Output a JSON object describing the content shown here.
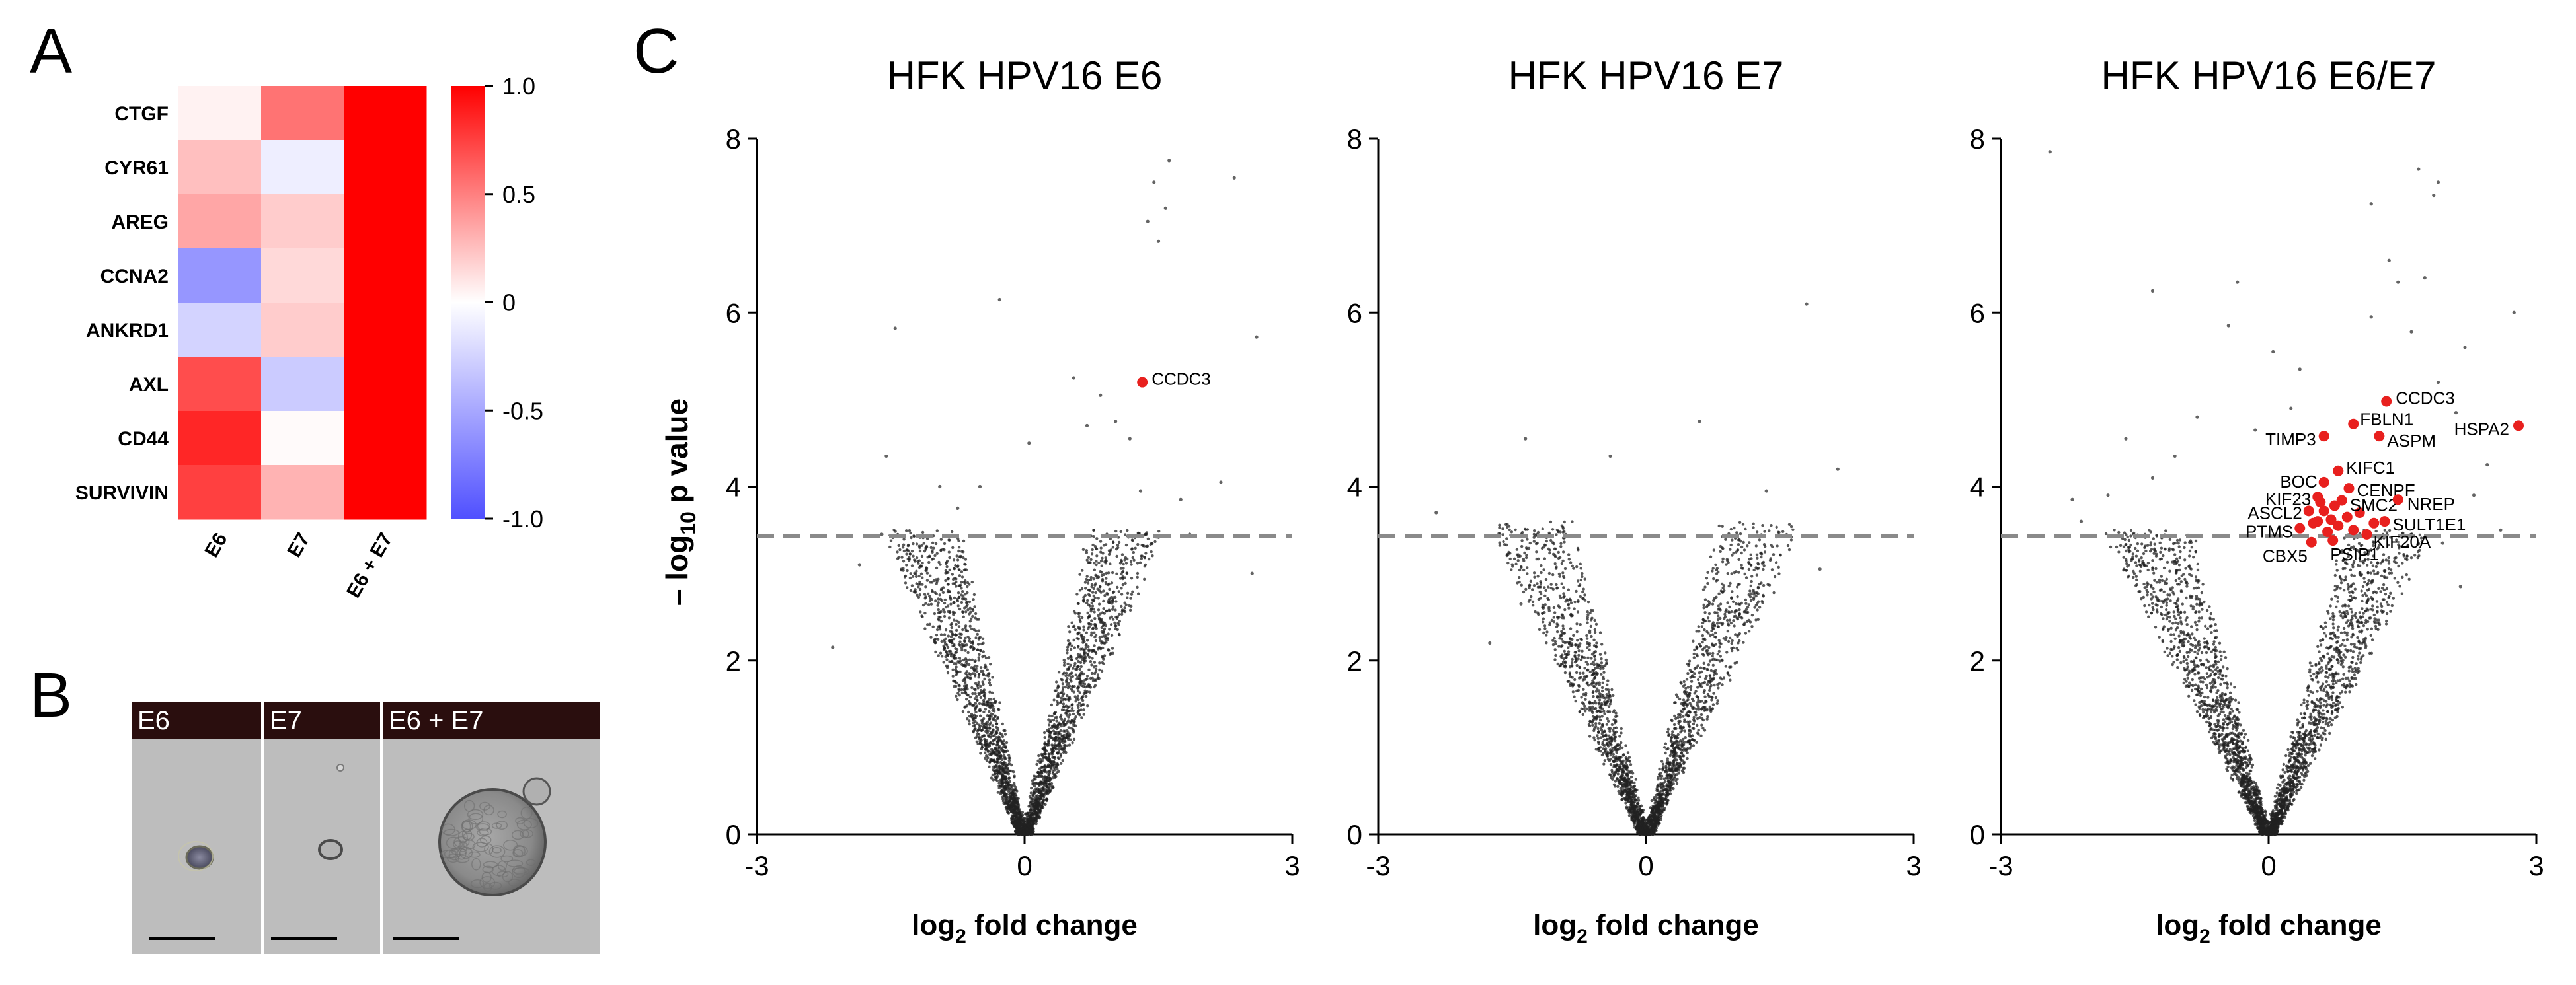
{
  "panels": {
    "A": "A",
    "B": "B",
    "C": "C"
  },
  "chart_data": [
    {
      "type": "heatmap",
      "rows": [
        "CTGF",
        "CYR61",
        "AREG",
        "CCNA2",
        "ANKRD1",
        "AXL",
        "CD44",
        "SURVIVIN"
      ],
      "columns": [
        "E6",
        "E7",
        "E6 + E7"
      ],
      "values": [
        [
          0.05,
          0.55,
          1.0
        ],
        [
          0.25,
          -0.1,
          1.0
        ],
        [
          0.35,
          0.2,
          1.0
        ],
        [
          -0.6,
          0.15,
          1.0
        ],
        [
          -0.25,
          0.2,
          1.0
        ],
        [
          0.7,
          -0.3,
          1.0
        ],
        [
          0.85,
          0.02,
          1.0
        ],
        [
          0.75,
          0.3,
          1.0
        ]
      ],
      "colorbar": {
        "range": [
          -1.0,
          1.0
        ],
        "ticks": [
          "1.0",
          "0.5",
          "0",
          "-0.5",
          "-1.0"
        ],
        "colors": {
          "low": "#5050ff",
          "mid": "#ffffff",
          "high": "#ff0000"
        }
      }
    },
    {
      "type": "scatter",
      "title": "HFK HPV16 E6",
      "xlabel_main": "log",
      "xlabel_sub": "2",
      "xlabel_rest": " fold change",
      "ylabel_main": "– log",
      "ylabel_sub": "10",
      "ylabel_rest": " p value",
      "xlim": [
        -3,
        3
      ],
      "ylim": [
        0,
        8
      ],
      "xticks": [
        "-3",
        "0",
        "3"
      ],
      "yticks": [
        "0",
        "2",
        "4",
        "6",
        "8"
      ],
      "threshold": 3.43,
      "labeled_points": [
        {
          "label": "CCDC3",
          "x": 1.32,
          "y": 5.2
        }
      ],
      "outliers": [
        [
          1.62,
          7.75
        ],
        [
          1.45,
          7.5
        ],
        [
          2.35,
          7.55
        ],
        [
          1.58,
          7.2
        ],
        [
          1.38,
          7.05
        ],
        [
          1.5,
          6.82
        ],
        [
          2.6,
          5.72
        ],
        [
          -1.45,
          5.82
        ],
        [
          -0.28,
          6.15
        ],
        [
          0.05,
          4.5
        ],
        [
          0.55,
          5.25
        ],
        [
          0.85,
          5.05
        ],
        [
          1.02,
          4.75
        ],
        [
          1.18,
          4.55
        ],
        [
          0.7,
          4.7
        ],
        [
          -1.55,
          4.35
        ],
        [
          -2.15,
          2.15
        ],
        [
          -1.6,
          3.45
        ],
        [
          -0.95,
          4.0
        ],
        [
          -0.75,
          3.75
        ],
        [
          -1.85,
          3.1
        ],
        [
          2.2,
          4.05
        ],
        [
          1.85,
          3.45
        ],
        [
          2.55,
          3.0
        ],
        [
          1.75,
          3.85
        ],
        [
          1.3,
          3.95
        ],
        [
          -0.5,
          4.0
        ]
      ],
      "colors": {
        "point": "#222222",
        "highlight": "#e8201e",
        "threshold": "#8a8a8a"
      }
    },
    {
      "type": "scatter",
      "title": "HFK HPV16 E7",
      "xlabel_main": "log",
      "xlabel_sub": "2",
      "xlabel_rest": " fold change",
      "xlim": [
        -3,
        3
      ],
      "ylim": [
        0,
        8
      ],
      "xticks": [
        "-3",
        "0",
        "3"
      ],
      "yticks": [
        "0",
        "2",
        "4",
        "6",
        "8"
      ],
      "threshold": 3.43,
      "labeled_points": [],
      "outliers": [
        [
          1.8,
          6.1
        ],
        [
          -1.35,
          4.55
        ],
        [
          -2.35,
          3.7
        ],
        [
          1.35,
          3.95
        ],
        [
          2.15,
          4.2
        ],
        [
          -1.4,
          2.65
        ],
        [
          -1.75,
          2.2
        ],
        [
          0.6,
          4.75
        ],
        [
          1.95,
          3.05
        ],
        [
          -0.4,
          4.35
        ]
      ],
      "colors": {
        "point": "#222222",
        "highlight": "#e8201e",
        "threshold": "#8a8a8a"
      }
    },
    {
      "type": "scatter",
      "title": "HFK HPV16 E6/E7",
      "xlabel_main": "log",
      "xlabel_sub": "2",
      "xlabel_rest": " fold change",
      "xlim": [
        -3,
        3
      ],
      "ylim": [
        0,
        8
      ],
      "xticks": [
        "-3",
        "0",
        "3"
      ],
      "yticks": [
        "0",
        "2",
        "4",
        "6",
        "8"
      ],
      "threshold": 3.43,
      "labeled_points": [
        {
          "label": "CCDC3",
          "x": 1.32,
          "y": 4.98
        },
        {
          "label": "FBLN1",
          "x": 0.95,
          "y": 4.72
        },
        {
          "label": "HSPA2",
          "x": 2.8,
          "y": 4.7
        },
        {
          "label": "TIMP3",
          "x": 0.62,
          "y": 4.58
        },
        {
          "label": "ASPM",
          "x": 1.24,
          "y": 4.58
        },
        {
          "label": "KIFC1",
          "x": 0.78,
          "y": 4.18
        },
        {
          "label": "BOC",
          "x": 0.62,
          "y": 4.05
        },
        {
          "label": "CENPF",
          "x": 0.9,
          "y": 3.98
        },
        {
          "label": "KIF23",
          "x": 0.55,
          "y": 3.88
        },
        {
          "label": "SMC2",
          "x": 0.82,
          "y": 3.84
        },
        {
          "label": "NREP",
          "x": 1.45,
          "y": 3.85
        },
        {
          "label": "ASCL2",
          "x": 0.45,
          "y": 3.72
        },
        {
          "label": "SULT1E1",
          "x": 1.3,
          "y": 3.6
        },
        {
          "label": "PTMS",
          "x": 0.35,
          "y": 3.52
        },
        {
          "label": "KIF20A",
          "x": 1.1,
          "y": 3.45
        },
        {
          "label": "CBX5",
          "x": 0.48,
          "y": 3.36
        },
        {
          "label": "PSIP1",
          "x": 0.72,
          "y": 3.38
        }
      ],
      "extra_highlights": [
        [
          0.62,
          3.72
        ],
        [
          0.7,
          3.62
        ],
        [
          0.55,
          3.6
        ],
        [
          0.78,
          3.55
        ],
        [
          0.66,
          3.48
        ],
        [
          0.5,
          3.58
        ],
        [
          0.88,
          3.65
        ],
        [
          0.95,
          3.5
        ],
        [
          1.02,
          3.7
        ],
        [
          0.58,
          3.82
        ],
        [
          0.74,
          3.78
        ],
        [
          1.18,
          3.58
        ]
      ],
      "outliers": [
        [
          -2.45,
          7.85
        ],
        [
          1.68,
          7.65
        ],
        [
          1.9,
          7.5
        ],
        [
          1.85,
          7.35
        ],
        [
          1.15,
          7.25
        ],
        [
          1.35,
          6.6
        ],
        [
          1.45,
          6.35
        ],
        [
          1.75,
          6.4
        ],
        [
          2.75,
          6.0
        ],
        [
          -0.35,
          6.35
        ],
        [
          -1.3,
          6.25
        ],
        [
          -0.45,
          5.85
        ],
        [
          0.05,
          5.55
        ],
        [
          0.35,
          5.35
        ],
        [
          1.15,
          5.95
        ],
        [
          1.6,
          5.78
        ],
        [
          2.2,
          5.6
        ],
        [
          1.9,
          5.2
        ],
        [
          -1.6,
          4.55
        ],
        [
          -2.2,
          3.85
        ],
        [
          -2.1,
          3.6
        ],
        [
          -1.3,
          4.1
        ],
        [
          -1.8,
          3.9
        ],
        [
          -1.05,
          4.35
        ],
        [
          2.45,
          4.25
        ],
        [
          2.1,
          4.85
        ],
        [
          1.95,
          3.35
        ],
        [
          2.3,
          3.9
        ],
        [
          2.6,
          3.5
        ],
        [
          -0.8,
          4.8
        ],
        [
          0.25,
          4.9
        ],
        [
          -0.15,
          4.65
        ],
        [
          2.15,
          2.85
        ]
      ],
      "colors": {
        "point": "#222222",
        "highlight": "#e8201e",
        "threshold": "#8a8a8a"
      }
    }
  ],
  "micrographs": {
    "labels": [
      "E6",
      "E7",
      "E6 + E7"
    ],
    "colors": {
      "header": "#2a0e0e",
      "background": "#bdbdbd",
      "scale_bar": "#000000"
    }
  }
}
